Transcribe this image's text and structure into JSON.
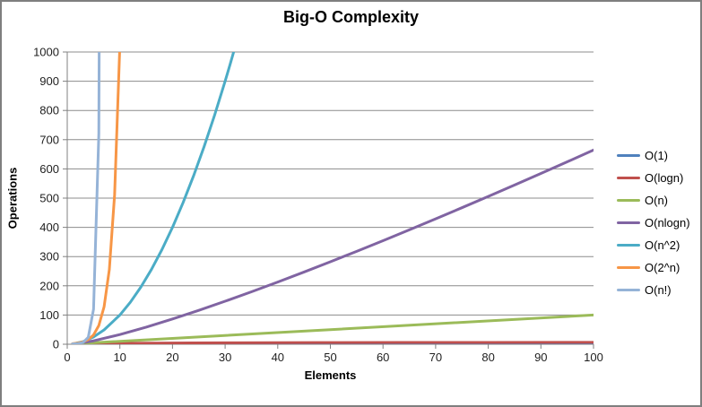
{
  "title": "Big-O Complexity",
  "colors": {
    "axis": "#808080",
    "gridline": "#8C8C8C",
    "border": "#7F7F7F",
    "tick_label": "#1F1F1F"
  },
  "chart_data": {
    "type": "line",
    "title": "Big-O Complexity",
    "xlabel": "Elements",
    "ylabel": "Operations",
    "xlim": [
      0,
      100
    ],
    "ylim": [
      0,
      1000
    ],
    "x_ticks": [
      0,
      10,
      20,
      30,
      40,
      50,
      60,
      70,
      80,
      90,
      100
    ],
    "y_ticks": [
      0,
      100,
      200,
      300,
      400,
      500,
      600,
      700,
      800,
      900,
      1000
    ],
    "grid": "horizontal",
    "legend_position": "right",
    "series": [
      {
        "name": "O(1)",
        "color": "#4F81BD",
        "points": [
          [
            1,
            1
          ],
          [
            100,
            1
          ]
        ]
      },
      {
        "name": "O(logn)",
        "color": "#C0504D",
        "points": [
          [
            1,
            0
          ],
          [
            2,
            1
          ],
          [
            3,
            1.58
          ],
          [
            4,
            2
          ],
          [
            6,
            2.58
          ],
          [
            8,
            3
          ],
          [
            12,
            3.58
          ],
          [
            16,
            4
          ],
          [
            24,
            4.58
          ],
          [
            32,
            5
          ],
          [
            48,
            5.58
          ],
          [
            64,
            6
          ],
          [
            80,
            6.32
          ],
          [
            100,
            6.64
          ]
        ]
      },
      {
        "name": "O(n)",
        "color": "#9BBB59",
        "points": [
          [
            1,
            1
          ],
          [
            100,
            100
          ]
        ]
      },
      {
        "name": "O(nlogn)",
        "color": "#8064A2",
        "points": [
          [
            1,
            0
          ],
          [
            5,
            11.6
          ],
          [
            10,
            33.2
          ],
          [
            15,
            58.6
          ],
          [
            20,
            86.4
          ],
          [
            25,
            116.1
          ],
          [
            30,
            147.2
          ],
          [
            35,
            179.5
          ],
          [
            40,
            212.9
          ],
          [
            45,
            247.2
          ],
          [
            50,
            282.2
          ],
          [
            55,
            317.9
          ],
          [
            60,
            354.4
          ],
          [
            65,
            391.5
          ],
          [
            70,
            429.1
          ],
          [
            75,
            467.2
          ],
          [
            80,
            505.8
          ],
          [
            85,
            544.8
          ],
          [
            90,
            584.3
          ],
          [
            95,
            624.1
          ],
          [
            100,
            664.4
          ]
        ]
      },
      {
        "name": "O(n^2)",
        "color": "#4BACC6",
        "points": [
          [
            1,
            1
          ],
          [
            3,
            9
          ],
          [
            5,
            25
          ],
          [
            7,
            49
          ],
          [
            10,
            100
          ],
          [
            12,
            144
          ],
          [
            14,
            196
          ],
          [
            16,
            256
          ],
          [
            18,
            324
          ],
          [
            20,
            400
          ],
          [
            22,
            484
          ],
          [
            24,
            576
          ],
          [
            26,
            676
          ],
          [
            28,
            784
          ],
          [
            30,
            900
          ],
          [
            31,
            961
          ],
          [
            32,
            1024
          ]
        ]
      },
      {
        "name": "O(2^n)",
        "color": "#F79646",
        "points": [
          [
            1,
            2
          ],
          [
            2,
            4
          ],
          [
            3,
            8
          ],
          [
            4,
            16
          ],
          [
            5,
            32
          ],
          [
            6,
            64
          ],
          [
            7,
            128
          ],
          [
            8,
            256
          ],
          [
            9,
            512
          ],
          [
            10,
            1024
          ]
        ]
      },
      {
        "name": "O(n!)",
        "color": "#95B3D7",
        "points": [
          [
            1,
            1
          ],
          [
            2,
            2
          ],
          [
            3,
            6
          ],
          [
            4,
            24
          ],
          [
            5,
            120
          ],
          [
            6,
            720
          ],
          [
            7,
            5040
          ]
        ]
      }
    ]
  }
}
